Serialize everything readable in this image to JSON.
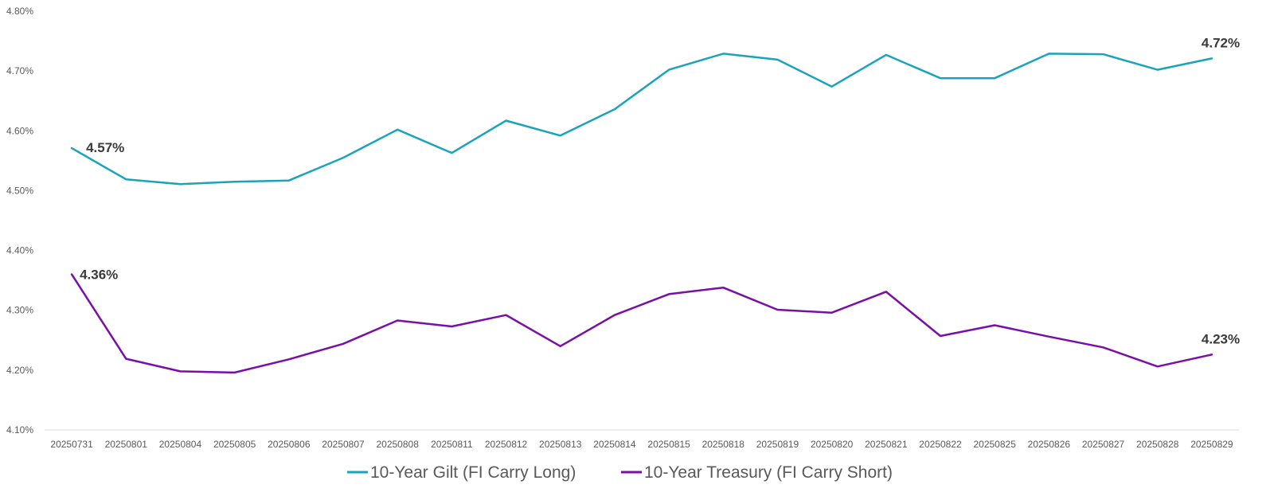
{
  "chart_data": {
    "type": "line",
    "categories": [
      "20250731",
      "20250801",
      "20250804",
      "20250805",
      "20250806",
      "20250807",
      "20250808",
      "20250811",
      "20250812",
      "20250813",
      "20250814",
      "20250815",
      "20250818",
      "20250819",
      "20250820",
      "20250821",
      "20250822",
      "20250825",
      "20250826",
      "20250827",
      "20250828",
      "20250829"
    ],
    "ylim": [
      4.1,
      4.8
    ],
    "yticks": [
      "4.10%",
      "4.20%",
      "4.30%",
      "4.40%",
      "4.50%",
      "4.60%",
      "4.70%",
      "4.80%"
    ],
    "grid": false,
    "legend_position": "bottom",
    "series": [
      {
        "name": "10-Year Gilt (FI Carry Long)",
        "color": "#1aa3bd",
        "values": [
          4.571,
          4.519,
          4.511,
          4.515,
          4.517,
          4.555,
          4.602,
          4.563,
          4.617,
          4.592,
          4.636,
          4.702,
          4.729,
          4.719,
          4.674,
          4.727,
          4.688,
          4.688,
          4.729,
          4.728,
          4.702,
          4.721
        ],
        "labels": {
          "first": "4.57%",
          "last": "4.72%"
        }
      },
      {
        "name": "10-Year Treasury (FI Carry Short)",
        "color": "#7a0fa8",
        "values": [
          4.36,
          4.219,
          4.198,
          4.196,
          4.218,
          4.244,
          4.283,
          4.273,
          4.292,
          4.24,
          4.292,
          4.327,
          4.338,
          4.301,
          4.296,
          4.331,
          4.257,
          4.275,
          4.256,
          4.238,
          4.206,
          4.226
        ],
        "labels": {
          "first": "4.36%",
          "last": "4.23%"
        }
      }
    ]
  }
}
